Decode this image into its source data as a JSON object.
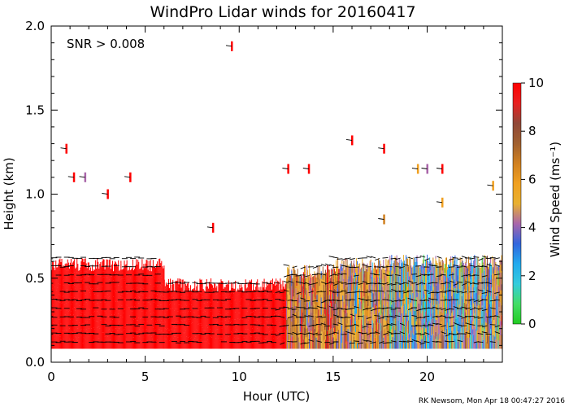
{
  "chart_data": {
    "type": "heatmap",
    "title": "WindPro Lidar winds for 20160417",
    "xlabel": "Hour (UTC)",
    "ylabel": "Height (km)",
    "xlim": [
      0,
      24
    ],
    "ylim": [
      0,
      2.0
    ],
    "x_ticks": [
      0,
      5,
      10,
      15,
      20
    ],
    "x_tick_labels": [
      "0",
      "5",
      "10",
      "15",
      "20"
    ],
    "y_ticks": [
      0.0,
      0.5,
      1.0,
      1.5,
      2.0
    ],
    "y_tick_labels": [
      "0.0",
      "0.5",
      "1.0",
      "1.5",
      "2.0"
    ],
    "annotation": "SNR > 0.008",
    "colorbar": {
      "label": "Wind Speed (ms⁻¹)",
      "min": 0,
      "max": 10,
      "ticks": [
        0,
        2,
        4,
        6,
        8,
        10
      ],
      "tick_labels": [
        "0",
        "2",
        "4",
        "6",
        "8",
        "10"
      ],
      "colors": [
        "#22cc22",
        "#44dd66",
        "#33ccdd",
        "#22aaee",
        "#3366dd",
        "#aa66aa",
        "#e8b030",
        "#f0a020",
        "#d08020",
        "#a06030",
        "#904838",
        "#e82020",
        "#ff0000"
      ]
    },
    "range_gates_km": [
      0.12,
      0.17,
      0.22,
      0.27,
      0.32,
      0.37,
      0.42,
      0.47,
      0.52,
      0.57,
      0.62
    ],
    "coverage": [
      {
        "hour_start": 0.0,
        "hour_end": 6.0,
        "top_km": 0.62,
        "speed_ms": 10
      },
      {
        "hour_start": 6.0,
        "hour_end": 12.5,
        "top_km": 0.5,
        "speed_ms": 10
      },
      {
        "hour_start": 12.5,
        "hour_end": 15.0,
        "top_km": 0.58,
        "speed_ms": 6.5
      },
      {
        "hour_start": 15.0,
        "hour_end": 18.0,
        "top_km": 0.62,
        "speed_ms": 5.5
      },
      {
        "hour_start": 18.0,
        "hour_end": 24.0,
        "top_km": 0.64,
        "speed_ms": 4.5
      }
    ],
    "upper_returns": [
      {
        "hour": 0.8,
        "height_km": 1.27,
        "speed_ms": 10
      },
      {
        "hour": 1.2,
        "height_km": 1.1,
        "speed_ms": 10
      },
      {
        "hour": 1.8,
        "height_km": 1.1,
        "speed_ms": 4
      },
      {
        "hour": 4.2,
        "height_km": 1.1,
        "speed_ms": 10
      },
      {
        "hour": 9.6,
        "height_km": 1.88,
        "speed_ms": 10
      },
      {
        "hour": 12.6,
        "height_km": 1.15,
        "speed_ms": 10
      },
      {
        "hour": 13.7,
        "height_km": 1.15,
        "speed_ms": 10
      },
      {
        "hour": 16.0,
        "height_km": 1.32,
        "speed_ms": 10
      },
      {
        "hour": 17.7,
        "height_km": 1.27,
        "speed_ms": 10
      },
      {
        "hour": 19.5,
        "height_km": 1.15,
        "speed_ms": 6
      },
      {
        "hour": 20.0,
        "height_km": 1.15,
        "speed_ms": 4
      },
      {
        "hour": 20.8,
        "height_km": 1.15,
        "speed_ms": 10
      },
      {
        "hour": 23.5,
        "height_km": 1.05,
        "speed_ms": 6
      },
      {
        "hour": 20.8,
        "height_km": 0.95,
        "speed_ms": 6
      },
      {
        "hour": 17.7,
        "height_km": 0.85,
        "speed_ms": 7
      },
      {
        "hour": 8.6,
        "height_km": 0.8,
        "speed_ms": 10
      },
      {
        "hour": 3.0,
        "height_km": 1.0,
        "speed_ms": 10
      }
    ]
  },
  "footer": "RK Newsom, Mon Apr 18 00:47:27 2016"
}
